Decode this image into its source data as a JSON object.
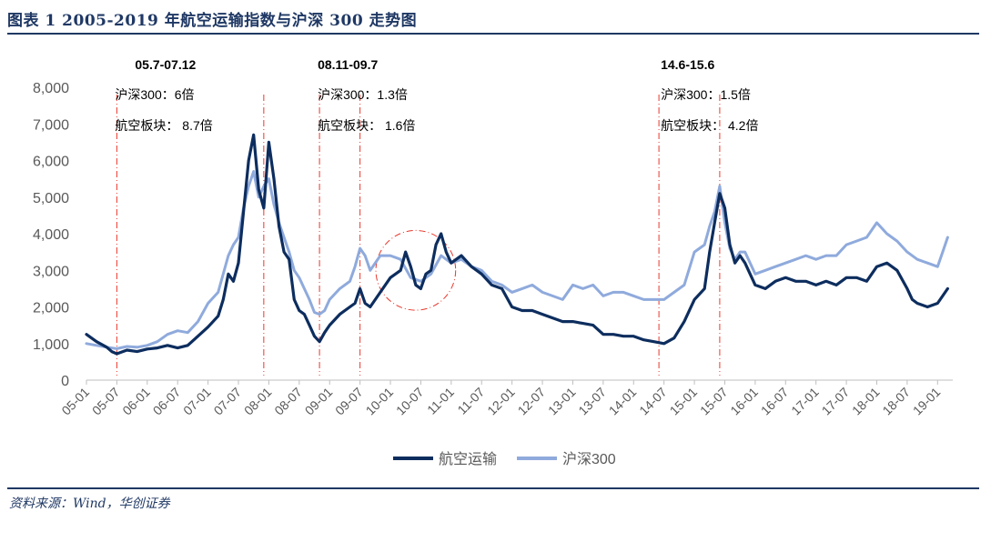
{
  "header": {
    "title": "图表 1    2005-2019 年航空运输指数与沪深 300 走势图"
  },
  "source": "资料来源：Wind，华创证券",
  "colors": {
    "airline": "#0d2d5e",
    "hs300": "#8faadc",
    "marker": "#e8382c",
    "header": "#1f3864"
  },
  "chart_data": {
    "type": "line",
    "title": "",
    "xlabel": "",
    "ylabel": "",
    "ylim": [
      0,
      8000
    ],
    "yticks": [
      "0",
      "1,000",
      "2,000",
      "3,000",
      "4,000",
      "5,000",
      "6,000",
      "7,000",
      "8,000"
    ],
    "xticks": [
      "05-01",
      "05-07",
      "06-01",
      "06-07",
      "07-01",
      "07-07",
      "08-01",
      "08-07",
      "09-01",
      "09-07",
      "10-01",
      "10-07",
      "11-01",
      "11-07",
      "12-01",
      "12-07",
      "13-01",
      "13-07",
      "14-01",
      "14-07",
      "15-01",
      "15-07",
      "16-01",
      "16-07",
      "17-01",
      "17-07",
      "18-01",
      "18-07",
      "19-01"
    ],
    "grid": false,
    "legend": "bottom-center",
    "series": [
      {
        "name": "航空运输",
        "color": "#0d2d5e",
        "points": [
          [
            "2005-01",
            1250
          ],
          [
            "2005-03",
            1050
          ],
          [
            "2005-05",
            900
          ],
          [
            "2005-06",
            780
          ],
          [
            "2005-07",
            720
          ],
          [
            "2005-09",
            820
          ],
          [
            "2005-11",
            780
          ],
          [
            "2006-01",
            850
          ],
          [
            "2006-03",
            880
          ],
          [
            "2006-05",
            950
          ],
          [
            "2006-07",
            880
          ],
          [
            "2006-09",
            950
          ],
          [
            "2006-11",
            1200
          ],
          [
            "2007-01",
            1450
          ],
          [
            "2007-03",
            1750
          ],
          [
            "2007-04",
            2200
          ],
          [
            "2007-05",
            2900
          ],
          [
            "2007-06",
            2700
          ],
          [
            "2007-07",
            3200
          ],
          [
            "2007-08",
            4600
          ],
          [
            "2007-09",
            6000
          ],
          [
            "2007-10",
            6700
          ],
          [
            "2007-11",
            5200
          ],
          [
            "2007-12",
            4700
          ],
          [
            "2008-01",
            6500
          ],
          [
            "2008-02",
            5500
          ],
          [
            "2008-03",
            4200
          ],
          [
            "2008-04",
            3500
          ],
          [
            "2008-05",
            3300
          ],
          [
            "2008-06",
            2200
          ],
          [
            "2008-07",
            1900
          ],
          [
            "2008-08",
            1800
          ],
          [
            "2008-09",
            1500
          ],
          [
            "2008-10",
            1200
          ],
          [
            "2008-11",
            1050
          ],
          [
            "2008-12",
            1300
          ],
          [
            "2009-01",
            1500
          ],
          [
            "2009-03",
            1800
          ],
          [
            "2009-05",
            2000
          ],
          [
            "2009-06",
            2100
          ],
          [
            "2009-07",
            2500
          ],
          [
            "2009-08",
            2100
          ],
          [
            "2009-09",
            2000
          ],
          [
            "2009-11",
            2400
          ],
          [
            "2010-01",
            2800
          ],
          [
            "2010-03",
            3000
          ],
          [
            "2010-04",
            3500
          ],
          [
            "2010-05",
            3100
          ],
          [
            "2010-06",
            2600
          ],
          [
            "2010-07",
            2500
          ],
          [
            "2010-08",
            2900
          ],
          [
            "2010-09",
            3000
          ],
          [
            "2010-10",
            3700
          ],
          [
            "2010-11",
            4000
          ],
          [
            "2010-12",
            3500
          ],
          [
            "2011-01",
            3200
          ],
          [
            "2011-03",
            3400
          ],
          [
            "2011-05",
            3100
          ],
          [
            "2011-07",
            2900
          ],
          [
            "2011-09",
            2600
          ],
          [
            "2011-11",
            2500
          ],
          [
            "2012-01",
            2000
          ],
          [
            "2012-03",
            1900
          ],
          [
            "2012-05",
            1900
          ],
          [
            "2012-07",
            1800
          ],
          [
            "2012-09",
            1700
          ],
          [
            "2012-11",
            1600
          ],
          [
            "2013-01",
            1600
          ],
          [
            "2013-03",
            1550
          ],
          [
            "2013-05",
            1500
          ],
          [
            "2013-07",
            1250
          ],
          [
            "2013-09",
            1250
          ],
          [
            "2013-11",
            1200
          ],
          [
            "2014-01",
            1200
          ],
          [
            "2014-03",
            1100
          ],
          [
            "2014-05",
            1050
          ],
          [
            "2014-07",
            1000
          ],
          [
            "2014-09",
            1150
          ],
          [
            "2014-11",
            1600
          ],
          [
            "2015-01",
            2200
          ],
          [
            "2015-03",
            2500
          ],
          [
            "2015-04",
            3500
          ],
          [
            "2015-05",
            4300
          ],
          [
            "2015-06",
            5100
          ],
          [
            "2015-07",
            4700
          ],
          [
            "2015-08",
            3700
          ],
          [
            "2015-09",
            3200
          ],
          [
            "2015-10",
            3400
          ],
          [
            "2015-11",
            3200
          ],
          [
            "2016-01",
            2600
          ],
          [
            "2016-03",
            2500
          ],
          [
            "2016-05",
            2700
          ],
          [
            "2016-07",
            2800
          ],
          [
            "2016-09",
            2700
          ],
          [
            "2016-11",
            2700
          ],
          [
            "2017-01",
            2600
          ],
          [
            "2017-03",
            2700
          ],
          [
            "2017-05",
            2600
          ],
          [
            "2017-07",
            2800
          ],
          [
            "2017-09",
            2800
          ],
          [
            "2017-11",
            2700
          ],
          [
            "2018-01",
            3100
          ],
          [
            "2018-03",
            3200
          ],
          [
            "2018-05",
            3000
          ],
          [
            "2018-07",
            2500
          ],
          [
            "2018-08",
            2200
          ],
          [
            "2018-09",
            2100
          ],
          [
            "2018-11",
            2000
          ],
          [
            "2019-01",
            2100
          ],
          [
            "2019-02",
            2300
          ],
          [
            "2019-03",
            2500
          ]
        ]
      },
      {
        "name": "沪深300",
        "color": "#8faadc",
        "points": [
          [
            "2005-01",
            1000
          ],
          [
            "2005-03",
            950
          ],
          [
            "2005-05",
            900
          ],
          [
            "2005-07",
            860
          ],
          [
            "2005-09",
            920
          ],
          [
            "2005-11",
            900
          ],
          [
            "2006-01",
            950
          ],
          [
            "2006-03",
            1050
          ],
          [
            "2006-05",
            1250
          ],
          [
            "2006-07",
            1350
          ],
          [
            "2006-09",
            1300
          ],
          [
            "2006-11",
            1600
          ],
          [
            "2007-01",
            2100
          ],
          [
            "2007-03",
            2400
          ],
          [
            "2007-05",
            3400
          ],
          [
            "2007-06",
            3700
          ],
          [
            "2007-07",
            3900
          ],
          [
            "2007-08",
            4700
          ],
          [
            "2007-09",
            5300
          ],
          [
            "2007-10",
            5700
          ],
          [
            "2007-11",
            5000
          ],
          [
            "2007-12",
            5300
          ],
          [
            "2008-01",
            5500
          ],
          [
            "2008-02",
            4800
          ],
          [
            "2008-03",
            4300
          ],
          [
            "2008-04",
            3900
          ],
          [
            "2008-05",
            3500
          ],
          [
            "2008-06",
            3000
          ],
          [
            "2008-07",
            2800
          ],
          [
            "2008-08",
            2500
          ],
          [
            "2008-09",
            2200
          ],
          [
            "2008-10",
            1850
          ],
          [
            "2008-11",
            1800
          ],
          [
            "2008-12",
            1900
          ],
          [
            "2009-01",
            2200
          ],
          [
            "2009-03",
            2500
          ],
          [
            "2009-05",
            2700
          ],
          [
            "2009-06",
            3100
          ],
          [
            "2009-07",
            3600
          ],
          [
            "2009-08",
            3400
          ],
          [
            "2009-09",
            3000
          ],
          [
            "2009-11",
            3400
          ],
          [
            "2010-01",
            3400
          ],
          [
            "2010-03",
            3300
          ],
          [
            "2010-05",
            2800
          ],
          [
            "2010-07",
            2700
          ],
          [
            "2010-09",
            2900
          ],
          [
            "2010-11",
            3400
          ],
          [
            "2011-01",
            3200
          ],
          [
            "2011-03",
            3300
          ],
          [
            "2011-05",
            3100
          ],
          [
            "2011-07",
            3000
          ],
          [
            "2011-09",
            2700
          ],
          [
            "2011-11",
            2600
          ],
          [
            "2012-01",
            2400
          ],
          [
            "2012-03",
            2500
          ],
          [
            "2012-05",
            2600
          ],
          [
            "2012-07",
            2400
          ],
          [
            "2012-09",
            2300
          ],
          [
            "2012-11",
            2200
          ],
          [
            "2013-01",
            2600
          ],
          [
            "2013-03",
            2500
          ],
          [
            "2013-05",
            2600
          ],
          [
            "2013-07",
            2300
          ],
          [
            "2013-09",
            2400
          ],
          [
            "2013-11",
            2400
          ],
          [
            "2014-01",
            2300
          ],
          [
            "2014-03",
            2200
          ],
          [
            "2014-05",
            2200
          ],
          [
            "2014-07",
            2200
          ],
          [
            "2014-09",
            2400
          ],
          [
            "2014-11",
            2600
          ],
          [
            "2015-01",
            3500
          ],
          [
            "2015-03",
            3700
          ],
          [
            "2015-04",
            4200
          ],
          [
            "2015-05",
            4600
          ],
          [
            "2015-06",
            5300
          ],
          [
            "2015-07",
            4300
          ],
          [
            "2015-08",
            3600
          ],
          [
            "2015-09",
            3300
          ],
          [
            "2015-10",
            3500
          ],
          [
            "2015-11",
            3500
          ],
          [
            "2016-01",
            2900
          ],
          [
            "2016-03",
            3000
          ],
          [
            "2016-05",
            3100
          ],
          [
            "2016-07",
            3200
          ],
          [
            "2016-09",
            3300
          ],
          [
            "2016-11",
            3400
          ],
          [
            "2017-01",
            3300
          ],
          [
            "2017-03",
            3400
          ],
          [
            "2017-05",
            3400
          ],
          [
            "2017-07",
            3700
          ],
          [
            "2017-09",
            3800
          ],
          [
            "2017-11",
            3900
          ],
          [
            "2018-01",
            4300
          ],
          [
            "2018-03",
            4000
          ],
          [
            "2018-05",
            3800
          ],
          [
            "2018-07",
            3500
          ],
          [
            "2018-09",
            3300
          ],
          [
            "2018-11",
            3200
          ],
          [
            "2019-01",
            3100
          ],
          [
            "2019-02",
            3500
          ],
          [
            "2019-03",
            3900
          ]
        ]
      }
    ],
    "markers": [
      "2005-07",
      "2007-12",
      "2008-11",
      "2009-07",
      "2014-06",
      "2015-06"
    ],
    "annotations": [
      {
        "heading": "05.7-07.12",
        "line1": "沪深300：6倍",
        "line2": "航空板块：  8.7倍"
      },
      {
        "heading": "08.11-09.7",
        "line1": "沪深300：1.3倍",
        "line2": "航空板块：  1.6倍"
      },
      {
        "heading": "14.6-15.6",
        "line1": "沪深300：1.5倍",
        "line2": "航空板块：  4.2倍"
      }
    ],
    "highlight_circle": {
      "center": [
        "2010-06",
        3000
      ],
      "radius_months": 5
    }
  }
}
